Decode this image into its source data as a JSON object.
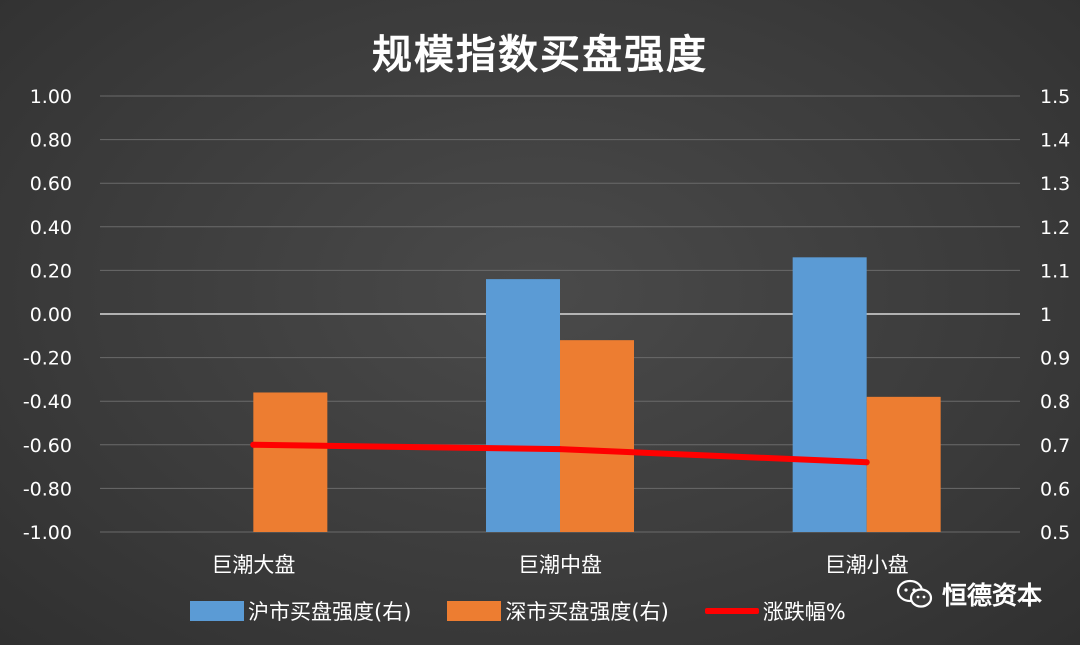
{
  "chart_data": {
    "type": "bar",
    "title": "规模指数买盘强度",
    "categories": [
      "巨潮大盘",
      "巨潮中盘",
      "巨潮小盘"
    ],
    "series": [
      {
        "name": "沪市买盘强度(右)",
        "type": "bar",
        "axis": "right",
        "color": "#5b9bd5",
        "values": [
          0.5,
          1.08,
          1.13
        ]
      },
      {
        "name": "深市买盘强度(右)",
        "type": "bar",
        "axis": "right",
        "color": "#ed7d31",
        "values": [
          0.82,
          0.94,
          0.81
        ]
      },
      {
        "name": "涨跌幅%",
        "type": "line",
        "axis": "left",
        "color": "#ff0000",
        "values": [
          -0.6,
          -0.62,
          -0.68
        ]
      }
    ],
    "left_axis": {
      "ylim": [
        -1.0,
        1.0
      ],
      "ticks": [
        "1.00",
        "0.80",
        "0.60",
        "0.40",
        "0.20",
        "0.00",
        "-0.20",
        "-0.40",
        "-0.60",
        "-0.80",
        "-1.00"
      ]
    },
    "right_axis": {
      "ylim": [
        0.5,
        1.5
      ],
      "ticks": [
        "1.5",
        "1.4",
        "1.3",
        "1.2",
        "1.1",
        "1",
        "0.9",
        "0.8",
        "0.7",
        "0.6",
        "0.5"
      ]
    },
    "grid": true,
    "legend_position": "bottom"
  },
  "watermark": {
    "text": "恒德资本",
    "icon": "wechat-icon"
  },
  "colors": {
    "background": "#3c3c3c",
    "grid": "#6a6a6a",
    "zero_line": "#d8d8d8",
    "text": "#ffffff"
  }
}
